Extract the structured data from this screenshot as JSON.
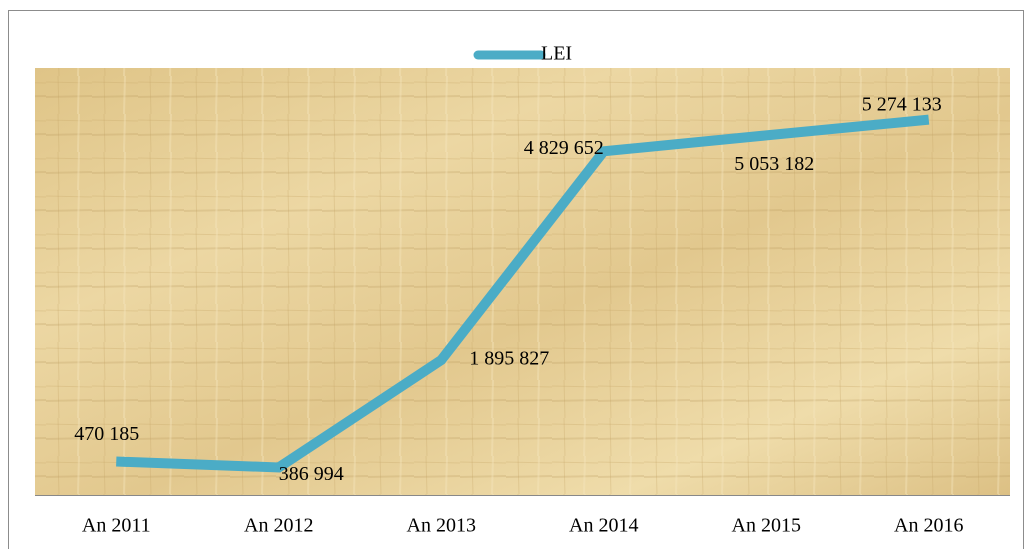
{
  "chart_data": {
    "type": "line",
    "categories": [
      "An 2011",
      "An 2012",
      "An 2013",
      "An 2014",
      "An 2015",
      "An 2016"
    ],
    "series": [
      {
        "name": "LEI",
        "color": "#4bacc6",
        "values": [
          470185,
          386994,
          1895827,
          4829652,
          5053182,
          5274133
        ],
        "value_labels": [
          "470 185",
          "386 994",
          "1 895 827",
          "4 829 652",
          "5 053 182",
          "5 274 133"
        ]
      }
    ],
    "ylim": [
      0,
      6000000
    ],
    "legend": "top"
  }
}
